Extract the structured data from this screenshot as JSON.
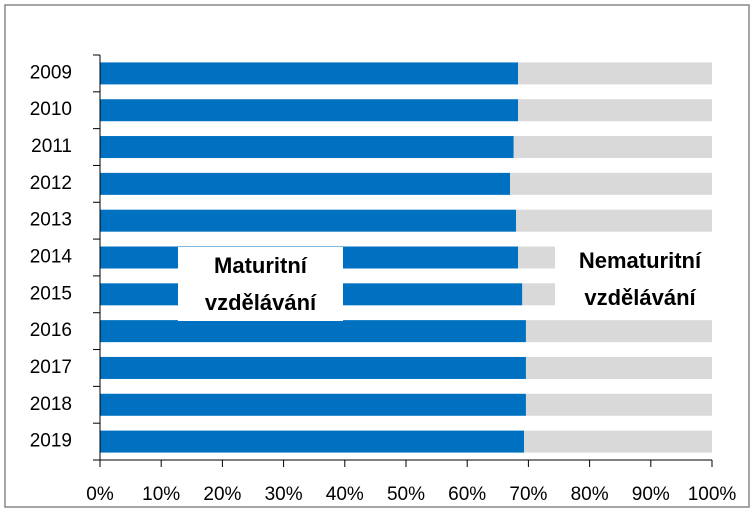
{
  "chart_data": {
    "type": "stacked_bar_horizontal",
    "categories": [
      "2009",
      "2010",
      "2011",
      "2012",
      "2013",
      "2014",
      "2015",
      "2016",
      "2017",
      "2018",
      "2019"
    ],
    "series": [
      {
        "name": "Maturitní vzdělávání",
        "color": "#0070c0",
        "values": [
          68.3,
          68.3,
          67.6,
          67.0,
          68.0,
          68.3,
          69.0,
          69.6,
          69.6,
          69.6,
          69.3
        ]
      },
      {
        "name": "Nematuritní vzdělávání",
        "color": "#d9d9d9",
        "values": [
          31.7,
          31.7,
          32.4,
          33.0,
          32.0,
          31.7,
          31.0,
          30.4,
          30.4,
          30.4,
          30.7
        ]
      }
    ],
    "xlim": [
      0,
      100
    ],
    "xticks": [
      {
        "value": 0,
        "label": "0%"
      },
      {
        "value": 10,
        "label": "10%"
      },
      {
        "value": 20,
        "label": "20%"
      },
      {
        "value": 30,
        "label": "30%"
      },
      {
        "value": 40,
        "label": "40%"
      },
      {
        "value": 50,
        "label": "50%"
      },
      {
        "value": 60,
        "label": "60%"
      },
      {
        "value": 70,
        "label": "70%"
      },
      {
        "value": 80,
        "label": "80%"
      },
      {
        "value": 90,
        "label": "90%"
      },
      {
        "value": 100,
        "label": "100%"
      }
    ]
  }
}
